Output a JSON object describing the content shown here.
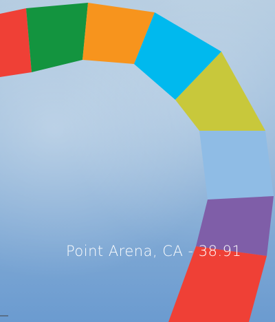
{
  "caption": "Point Arena, CA - 38.91"
}
